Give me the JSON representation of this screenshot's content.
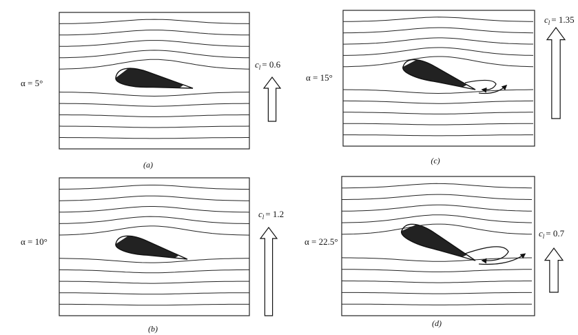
{
  "lift_symbol": "c",
  "lift_subscript": "l",
  "panels": [
    {
      "label": "(a)",
      "angle": "α = 5°",
      "lift": "= 0.6"
    },
    {
      "label": "(b)",
      "angle": "α = 10°",
      "lift": "= 1.2"
    },
    {
      "label": "(c)",
      "angle": "α = 15°",
      "lift": "= 1.35"
    },
    {
      "label": "(d)",
      "angle": "α = 22.5°",
      "lift": "= 0.7"
    }
  ]
}
